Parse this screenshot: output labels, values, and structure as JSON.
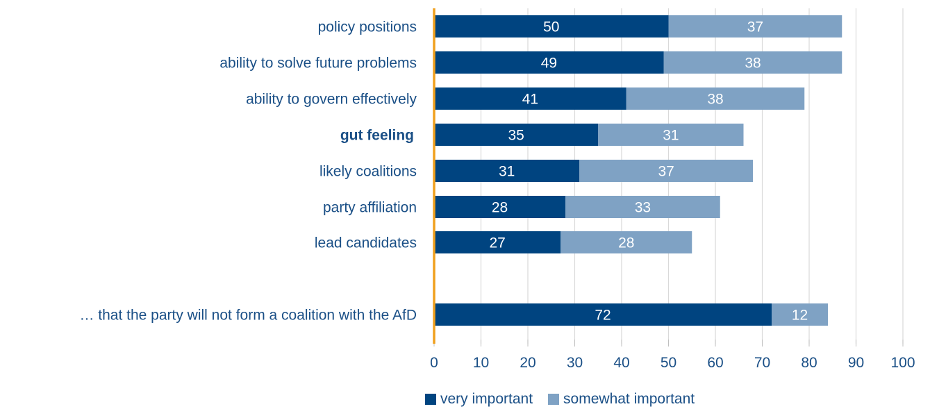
{
  "chart_data": {
    "type": "bar",
    "orientation": "horizontal",
    "stacked": true,
    "categories": [
      "policy positions",
      "ability to solve future problems",
      "ability to govern effectively",
      "gut feeling",
      "likely coalitions",
      "party affiliation",
      "lead candidates",
      "… that the party will not form a coalition with the AfD"
    ],
    "highlighted_category": "gut feeling",
    "series": [
      {
        "name": "very important",
        "values": [
          50,
          49,
          41,
          35,
          31,
          28,
          27,
          72
        ]
      },
      {
        "name": "somewhat important",
        "values": [
          37,
          38,
          38,
          31,
          37,
          33,
          28,
          12
        ]
      }
    ],
    "xlim": [
      0,
      100
    ],
    "xticks": [
      0,
      10,
      20,
      30,
      40,
      50,
      60,
      70,
      80,
      90,
      100
    ],
    "grid": true,
    "legend_position": "bottom",
    "colors": {
      "very_important": "#004480",
      "somewhat_important": "#7fa2c4",
      "axis_highlight": "#f0a01e",
      "text": "#1a4f86",
      "grid": "#d9d9d9"
    }
  }
}
